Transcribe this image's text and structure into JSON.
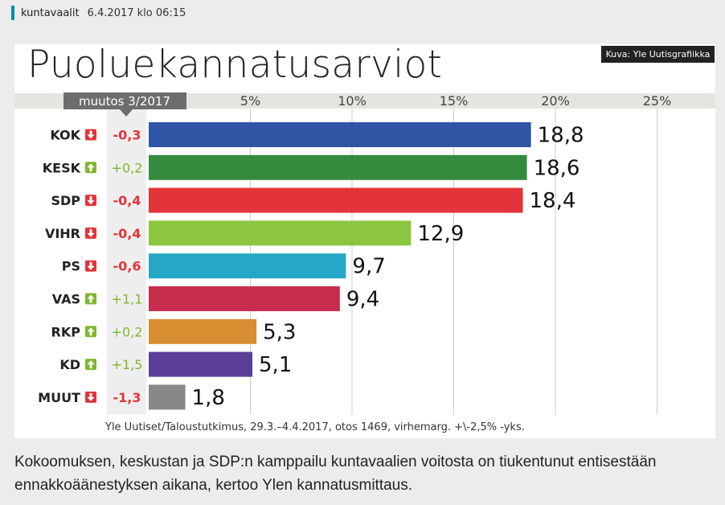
{
  "header": {
    "category": "kuntavaalit",
    "date": "6.4.2017 klo 06:15"
  },
  "image_credit": "Kuva: Yle Uutisgrafiikka",
  "chart_data": {
    "type": "bar",
    "orientation": "horizontal",
    "title": "Puoluekannatusarviot",
    "change_column_label": "muutos 3/2017",
    "categories": [
      "KOK",
      "KESK",
      "SDP",
      "VIHR",
      "PS",
      "VAS",
      "RKP",
      "KD",
      "MUUT"
    ],
    "values": [
      18.8,
      18.6,
      18.4,
      12.9,
      9.7,
      9.4,
      5.3,
      5.1,
      1.8
    ],
    "value_labels": [
      "18,8",
      "18,6",
      "18,4",
      "12,9",
      "9,7",
      "9,4",
      "5,3",
      "5,1",
      "1,8"
    ],
    "changes": [
      "-0,3",
      "+0,2",
      "-0,4",
      "-0,4",
      "-0,6",
      "+1,1",
      "+0,2",
      "+1,5",
      "-1,3"
    ],
    "change_direction": [
      "down",
      "up",
      "down",
      "down",
      "down",
      "up",
      "up",
      "up",
      "down"
    ],
    "colors": [
      "#2f55a4",
      "#348a3d",
      "#e3343a",
      "#8cc63f",
      "#26a7c5",
      "#c72d4f",
      "#d78f31",
      "#5b3f97",
      "#888888"
    ],
    "xlim": [
      0,
      28
    ],
    "xticks": [
      5,
      10,
      15,
      20,
      25
    ],
    "xtick_labels": [
      "5%",
      "10%",
      "15%",
      "20%",
      "25%"
    ],
    "colors_ui": {
      "up": "#7cb82f",
      "down": "#e3343a",
      "axis_band": "#e6e4df",
      "label_band": "#6d6d6d"
    },
    "source": "Yle Uutiset/Taloustutkimus, 29.3.–4.4.2017, otos 1469, virhemarg. +\\-2,5% -yks."
  },
  "caption": "Kokoomuksen, keskustan ja SDP:n kamppailu kuntavaalien voitosta on tiukentunut entisestään ennakkoäänestyksen aikana, kertoo Ylen kannatusmittaus."
}
